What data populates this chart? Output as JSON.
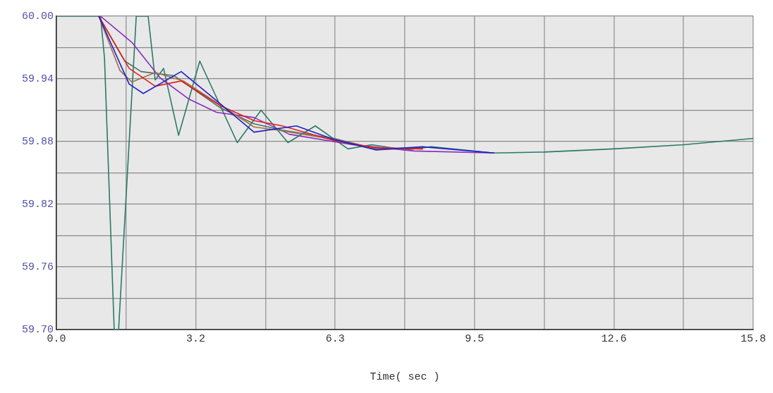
{
  "chart_data": {
    "type": "line",
    "xlabel": "Time( sec )",
    "xlim": [
      0,
      15.8
    ],
    "xticks": [
      {
        "value": 0,
        "label": "0.0"
      },
      {
        "value": 1.58,
        "label": null
      },
      {
        "value": 3.16,
        "label": "3.2"
      },
      {
        "value": 4.74,
        "label": null
      },
      {
        "value": 6.32,
        "label": "6.3"
      },
      {
        "value": 7.9,
        "label": null
      },
      {
        "value": 9.48,
        "label": "9.5"
      },
      {
        "value": 11.06,
        "label": null
      },
      {
        "value": 12.64,
        "label": "12.6"
      },
      {
        "value": 14.22,
        "label": null
      },
      {
        "value": 15.8,
        "label": "15.8"
      }
    ],
    "ylim": [
      59.7,
      60.0
    ],
    "yticks": [
      {
        "value": 59.7,
        "label": "59.70"
      },
      {
        "value": 59.73,
        "label": null
      },
      {
        "value": 59.76,
        "label": "59.76"
      },
      {
        "value": 59.79,
        "label": null
      },
      {
        "value": 59.82,
        "label": "59.82"
      },
      {
        "value": 59.85,
        "label": null
      },
      {
        "value": 59.88,
        "label": "59.88"
      },
      {
        "value": 59.91,
        "label": null
      },
      {
        "value": 59.94,
        "label": "59.94"
      },
      {
        "value": 59.97,
        "label": null
      },
      {
        "value": 60.0,
        "label": "60.00"
      }
    ],
    "grid": true,
    "legend": false,
    "marker": "none",
    "line_style": "solid",
    "series": [
      {
        "color": "#2020c8",
        "x": [
          0.96,
          1.65,
          1.97,
          2.83,
          3.52,
          4.48,
          5.44,
          6.29,
          7.25,
          8.3,
          9.92
        ],
        "values": [
          60.0,
          59.935,
          59.926,
          59.947,
          59.923,
          59.889,
          59.895,
          59.882,
          59.872,
          59.875,
          59.869
        ]
      },
      {
        "color": "#e02020",
        "x": [
          0.96,
          1.65,
          2.24,
          2.83,
          3.73,
          4.48,
          5.12,
          6.29,
          7.25,
          8.3
        ],
        "values": [
          60.0,
          59.95,
          59.933,
          59.938,
          59.914,
          59.9,
          59.895,
          59.881,
          59.874,
          59.873
        ]
      },
      {
        "color": "#a0704a",
        "x": [
          0.96,
          1.44,
          1.71,
          2.24,
          2.88,
          4.48,
          5.01,
          6.29,
          7.25,
          8.3
        ],
        "values": [
          60.0,
          59.948,
          59.937,
          59.946,
          59.938,
          59.894,
          59.891,
          59.882,
          59.873,
          59.873
        ]
      },
      {
        "color": "#4f6f66",
        "x": [
          0.96,
          1.55,
          1.92,
          2.67,
          3.73,
          4.48,
          5.12,
          6.29,
          7.25,
          8.3
        ],
        "values": [
          60.0,
          59.957,
          59.947,
          59.943,
          59.912,
          59.897,
          59.891,
          59.883,
          59.873,
          59.874
        ]
      },
      {
        "color": "#8a2cc0",
        "x": [
          1.0,
          1.71,
          2.35,
          2.99,
          3.63,
          4.48,
          5.28,
          6.72,
          8.11,
          9.92
        ],
        "values": [
          60.0,
          59.975,
          59.941,
          59.921,
          59.908,
          59.903,
          59.887,
          59.877,
          59.871,
          59.869
        ]
      },
      {
        "color": "#2a7a68",
        "x": [
          0,
          1.0,
          1.09,
          1.31,
          1.41,
          1.81,
          2.08,
          2.24,
          2.43,
          2.77,
          3.25,
          4.1,
          4.64,
          5.25,
          5.87,
          6.61,
          7.15,
          7.9,
          8.5,
          9.92,
          11.06,
          12.64,
          14.22,
          15.8
        ],
        "values": [
          60.0,
          60.0,
          59.96,
          59.7,
          59.7,
          60.0,
          60.0,
          59.939,
          59.95,
          59.886,
          59.957,
          59.879,
          59.91,
          59.879,
          59.895,
          59.873,
          59.877,
          59.872,
          59.875,
          59.869,
          59.87,
          59.873,
          59.877,
          59.883
        ]
      }
    ]
  }
}
